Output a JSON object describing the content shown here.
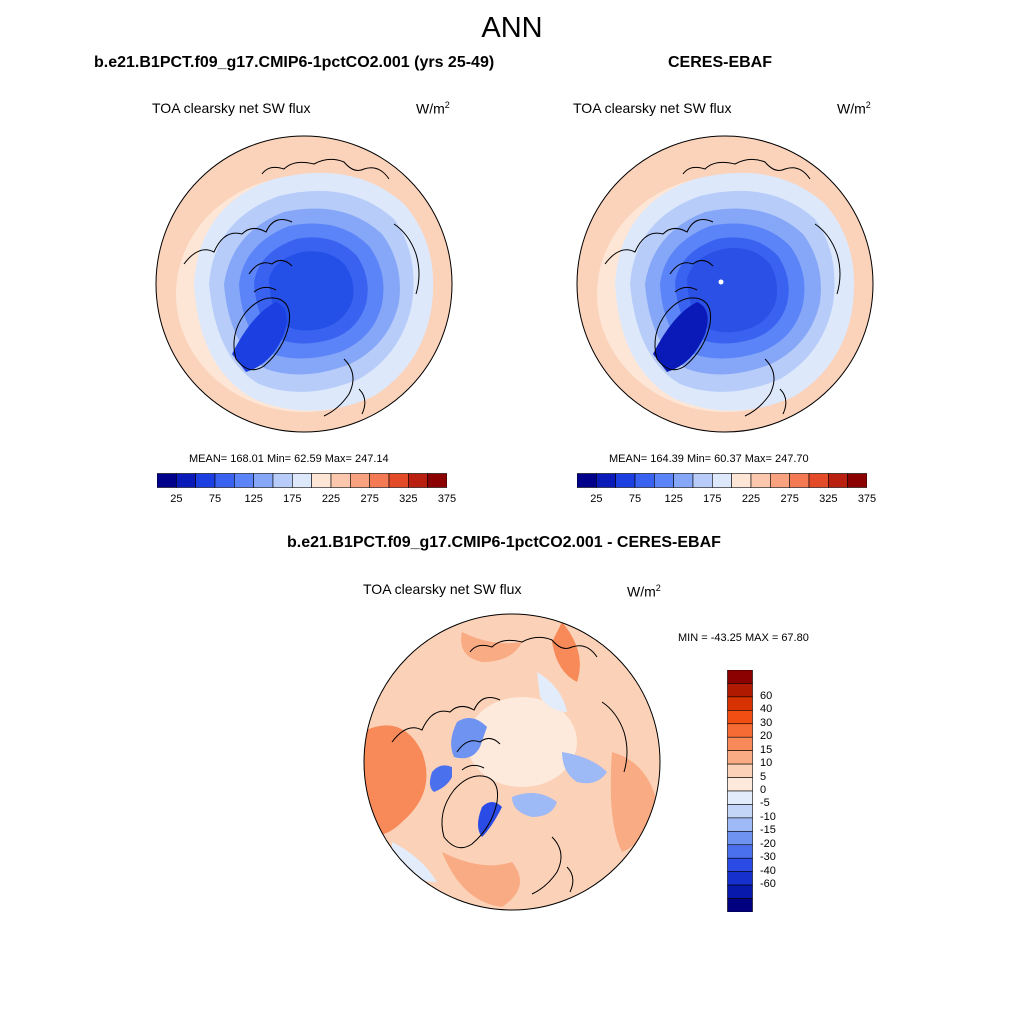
{
  "figure_title": "ANN",
  "panels": [
    {
      "title": "b.e21.B1PCT.f09_g17.CMIP6-1pctCO2.001 (yrs 25-49)",
      "variable": "TOA clearsky net SW flux",
      "units_base": "W/m",
      "units_exp": "2",
      "stats": "MEAN= 168.01  Min=  62.59  Max= 247.14"
    },
    {
      "title": "CERES-EBAF",
      "variable": "TOA clearsky net SW flux",
      "units_base": "W/m",
      "units_exp": "2",
      "stats": "MEAN= 164.39  Min=  60.37  Max= 247.70"
    },
    {
      "title": "b.e21.B1PCT.f09_g17.CMIP6-1pctCO2.001 - CERES-EBAF",
      "variable": "TOA clearsky net SW flux",
      "units_base": "W/m",
      "units_exp": "2",
      "stats": "MIN = -43.25 MAX =  67.80"
    }
  ],
  "colorbar_abs": {
    "colors": [
      "#00008b",
      "#0a1ab8",
      "#1b3fe0",
      "#3a62f0",
      "#5a84f7",
      "#86a6f8",
      "#b7ccf9",
      "#dde8fb",
      "#fde6d6",
      "#fbc8ad",
      "#f8a27f",
      "#f47a53",
      "#e24a28",
      "#b9200f",
      "#8b0000"
    ],
    "labels": [
      "25",
      "75",
      "125",
      "175",
      "225",
      "275",
      "325",
      "375"
    ]
  },
  "colorbar_diff": {
    "colors": [
      "#8b0000",
      "#b01a00",
      "#d73300",
      "#f04e12",
      "#f66b34",
      "#f78a58",
      "#f9ab83",
      "#fbd1b8",
      "#fdeadc",
      "#e2ecfa",
      "#c4d6f8",
      "#9db9f6",
      "#6f93f1",
      "#4b70ed",
      "#2a4be5",
      "#1530cd",
      "#0819ae",
      "#000080"
    ],
    "labels": [
      "60",
      "40",
      "30",
      "20",
      "15",
      "10",
      "5",
      "0",
      "-5",
      "-10",
      "-15",
      "-20",
      "-30",
      "-40",
      "-60"
    ]
  },
  "chart_data": [
    {
      "type": "heatmap",
      "projection": "north polar stereographic",
      "title": "b.e21.B1PCT.f09_g17.CMIP6-1pctCO2.001 (yrs 25-49)",
      "variable": "TOA clearsky net SW flux",
      "units": "W/m2",
      "mean": 168.01,
      "min": 62.59,
      "max": 247.14,
      "colorbar_levels": [
        25,
        50,
        75,
        100,
        125,
        150,
        175,
        200,
        225,
        250,
        275,
        300,
        325,
        350,
        375
      ]
    },
    {
      "type": "heatmap",
      "projection": "north polar stereographic",
      "title": "CERES-EBAF",
      "variable": "TOA clearsky net SW flux",
      "units": "W/m2",
      "mean": 164.39,
      "min": 60.37,
      "max": 247.7,
      "colorbar_levels": [
        25,
        50,
        75,
        100,
        125,
        150,
        175,
        200,
        225,
        250,
        275,
        300,
        325,
        350,
        375
      ]
    },
    {
      "type": "heatmap",
      "projection": "north polar stereographic",
      "title": "b.e21.B1PCT.f09_g17.CMIP6-1pctCO2.001 - CERES-EBAF",
      "variable": "TOA clearsky net SW flux",
      "units": "W/m2",
      "min": -43.25,
      "max": 67.8,
      "colorbar_levels": [
        -60,
        -40,
        -30,
        -20,
        -15,
        -10,
        -5,
        0,
        5,
        10,
        15,
        20,
        30,
        40,
        60
      ]
    }
  ]
}
